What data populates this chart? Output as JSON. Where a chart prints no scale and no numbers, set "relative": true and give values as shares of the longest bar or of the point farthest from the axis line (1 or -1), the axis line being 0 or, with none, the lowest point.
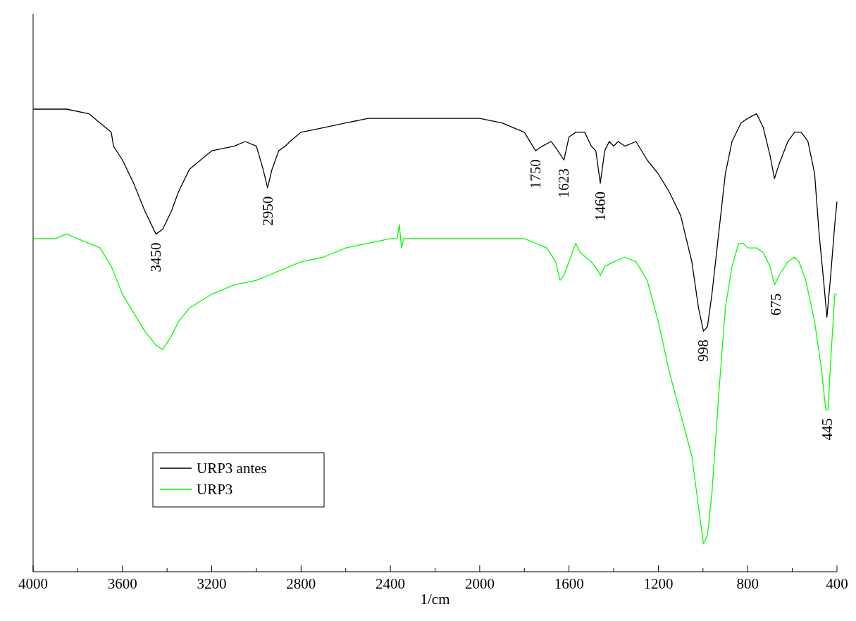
{
  "chart_data": {
    "type": "line",
    "xlabel": "1/cm",
    "relative": true,
    "xlim": [
      4000,
      400
    ],
    "xticks": [
      4000,
      {
        "value": 3800,
        "label": null
      },
      3600,
      {
        "value": 3400,
        "label": null
      },
      3200,
      {
        "value": 3000,
        "label": null
      },
      2800,
      {
        "value": 2600,
        "label": null
      },
      2400,
      {
        "value": 2200,
        "label": null
      },
      2000,
      {
        "value": 1800,
        "label": null
      },
      1600,
      {
        "value": 1400,
        "label": null
      },
      1200,
      {
        "value": 1000,
        "label": null
      },
      800,
      {
        "value": 600,
        "label": null
      },
      400
    ],
    "tick_labels": "x",
    "legend": "bottom left",
    "line_style": "solid",
    "series": [
      {
        "name": "URP3 antes",
        "color": "#000000",
        "x": [
          4000,
          3900,
          3850,
          3750,
          3700,
          3650,
          3640,
          3600,
          3550,
          3500,
          3450,
          3420,
          3380,
          3350,
          3300,
          3250,
          3200,
          3100,
          3050,
          3000,
          2970,
          2950,
          2930,
          2900,
          2870,
          2850,
          2800,
          2700,
          2600,
          2500,
          2400,
          2350,
          2200,
          2000,
          1900,
          1800,
          1750,
          1720,
          1680,
          1650,
          1623,
          1600,
          1570,
          1530,
          1500,
          1480,
          1460,
          1440,
          1420,
          1400,
          1380,
          1350,
          1300,
          1250,
          1200,
          1150,
          1100,
          1050,
          1020,
          998,
          980,
          960,
          930,
          900,
          870,
          830,
          800,
          760,
          730,
          700,
          680,
          660,
          620,
          590,
          560,
          530,
          500,
          480,
          460,
          445,
          430,
          410,
          400
        ],
        "values": [
          1.0,
          1.0,
          1.0,
          0.99,
          0.97,
          0.95,
          0.92,
          0.89,
          0.84,
          0.78,
          0.73,
          0.74,
          0.78,
          0.82,
          0.87,
          0.89,
          0.91,
          0.92,
          0.93,
          0.92,
          0.87,
          0.83,
          0.87,
          0.91,
          0.92,
          0.93,
          0.95,
          0.96,
          0.97,
          0.98,
          0.98,
          0.98,
          0.98,
          0.98,
          0.97,
          0.95,
          0.91,
          0.92,
          0.93,
          0.91,
          0.89,
          0.94,
          0.95,
          0.95,
          0.92,
          0.91,
          0.84,
          0.91,
          0.93,
          0.92,
          0.93,
          0.92,
          0.93,
          0.89,
          0.86,
          0.82,
          0.77,
          0.67,
          0.57,
          0.52,
          0.53,
          0.6,
          0.73,
          0.86,
          0.93,
          0.97,
          0.98,
          0.99,
          0.96,
          0.9,
          0.85,
          0.88,
          0.93,
          0.95,
          0.95,
          0.93,
          0.86,
          0.73,
          0.63,
          0.55,
          0.63,
          0.75,
          0.8
        ]
      },
      {
        "name": "URP3",
        "color": "#00ff00",
        "x": [
          4000,
          3900,
          3850,
          3750,
          3700,
          3650,
          3600,
          3550,
          3500,
          3450,
          3420,
          3380,
          3350,
          3300,
          3200,
          3100,
          3000,
          2950,
          2900,
          2800,
          2700,
          2600,
          2500,
          2400,
          2370,
          2360,
          2350,
          2340,
          2300,
          2200,
          2000,
          1900,
          1800,
          1700,
          1660,
          1640,
          1623,
          1600,
          1570,
          1550,
          1500,
          1470,
          1460,
          1440,
          1400,
          1350,
          1300,
          1250,
          1200,
          1150,
          1100,
          1050,
          1020,
          998,
          980,
          960,
          930,
          900,
          870,
          840,
          820,
          800,
          760,
          730,
          700,
          680,
          660,
          620,
          590,
          570,
          540,
          500,
          470,
          450,
          440,
          430,
          410,
          400
        ],
        "values": [
          0.72,
          0.72,
          0.73,
          0.71,
          0.7,
          0.66,
          0.6,
          0.56,
          0.52,
          0.49,
          0.48,
          0.51,
          0.54,
          0.57,
          0.6,
          0.62,
          0.63,
          0.64,
          0.65,
          0.67,
          0.68,
          0.7,
          0.71,
          0.72,
          0.72,
          0.75,
          0.7,
          0.72,
          0.72,
          0.72,
          0.72,
          0.72,
          0.72,
          0.7,
          0.67,
          0.63,
          0.64,
          0.67,
          0.71,
          0.69,
          0.67,
          0.65,
          0.64,
          0.66,
          0.67,
          0.68,
          0.67,
          0.63,
          0.54,
          0.43,
          0.34,
          0.25,
          0.14,
          0.06,
          0.08,
          0.17,
          0.38,
          0.57,
          0.66,
          0.71,
          0.71,
          0.7,
          0.7,
          0.69,
          0.66,
          0.62,
          0.64,
          0.67,
          0.68,
          0.67,
          0.63,
          0.54,
          0.44,
          0.35,
          0.35,
          0.44,
          0.6,
          0.6
        ]
      }
    ],
    "annotations": [
      {
        "text": "3450",
        "x": 3450,
        "y": 0.73
      },
      {
        "text": "2950",
        "x": 2950,
        "y": 0.83
      },
      {
        "text": "1750",
        "x": 1750,
        "y": 0.91
      },
      {
        "text": "1623",
        "x": 1623,
        "y": 0.89
      },
      {
        "text": "1460",
        "x": 1460,
        "y": 0.84
      },
      {
        "text": "998",
        "x": 998,
        "y": 0.52
      },
      {
        "text": "675",
        "x": 675,
        "y": 0.62
      },
      {
        "text": "445",
        "x": 445,
        "y": 0.35
      }
    ]
  }
}
